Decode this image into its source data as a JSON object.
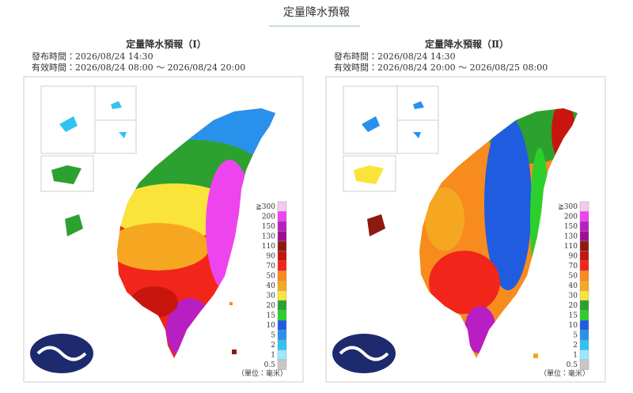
{
  "page_title": "定量降水預報",
  "panels": [
    {
      "title": "定量降水預報（Ⅰ）",
      "issued": "發布時間：2026/08/24 14:30",
      "valid": "有效時間：2026/08/24 08:00 ～ 2026/08/24 20:00",
      "unit": "（單位：毫米）"
    },
    {
      "title": "定量降水預報（Ⅱ）",
      "issued": "發布時間：2026/08/24 14:30",
      "valid": "有效時間：2026/08/24 20:00 ～ 2026/08/25 08:00",
      "unit": "（單位：毫米）"
    }
  ],
  "legend": [
    {
      "label": "≧300",
      "color": "#f7c8ef"
    },
    {
      "label": "200",
      "color": "#ee44f0"
    },
    {
      "label": "150",
      "color": "#b81fc2"
    },
    {
      "label": "130",
      "color": "#9a0f93"
    },
    {
      "label": "110",
      "color": "#8c1a0e"
    },
    {
      "label": "90",
      "color": "#c8160f"
    },
    {
      "label": "70",
      "color": "#f2251b"
    },
    {
      "label": "50",
      "color": "#f78b1e"
    },
    {
      "label": "40",
      "color": "#f6a722"
    },
    {
      "label": "30",
      "color": "#fae43a"
    },
    {
      "label": "20",
      "color": "#2da130"
    },
    {
      "label": "15",
      "color": "#2bd02c"
    },
    {
      "label": "10",
      "color": "#1f5ce0"
    },
    {
      "label": "5",
      "color": "#2891ec"
    },
    {
      "label": "2",
      "color": "#30c3f2"
    },
    {
      "label": "1",
      "color": "#9de9fb"
    },
    {
      "label": "0.5",
      "color": "#c8c8c8"
    }
  ]
}
